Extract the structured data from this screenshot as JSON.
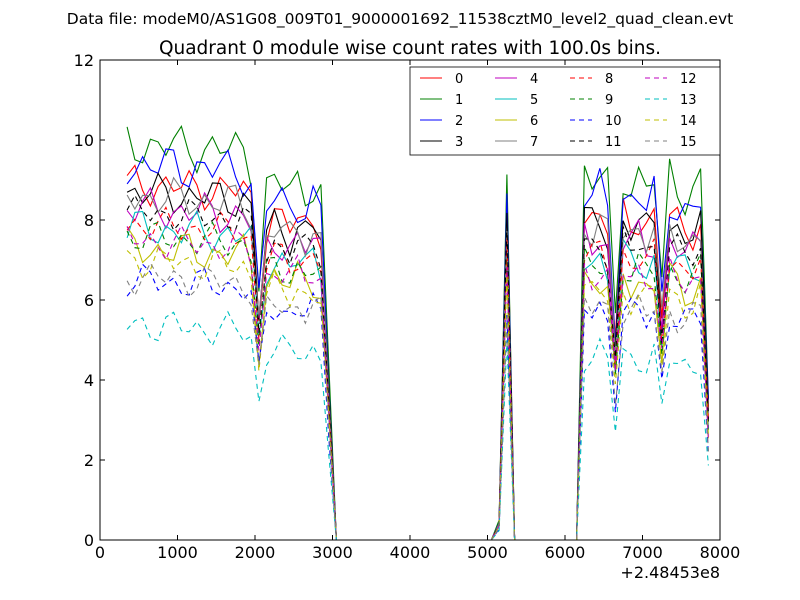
{
  "suptitle": "Data file: modeM0/AS1G08_009T01_9000001692_11538cztM0_level2_quad_clean.evt",
  "chart_data": {
    "type": "line",
    "title": "Quadrant 0 module wise count rates with 100.0s bins.",
    "xlabel": "",
    "ylabel": "",
    "x_offset_label": "+2.48453e8",
    "xlim": [
      0,
      8000
    ],
    "ylim": [
      0,
      12
    ],
    "xticks": [
      0,
      1000,
      2000,
      3000,
      4000,
      5000,
      6000,
      7000,
      8000
    ],
    "yticks": [
      0,
      2,
      4,
      6,
      8,
      10,
      12
    ],
    "grid": false,
    "legend_position": "top-right",
    "legend_columns": 4,
    "x": [
      350,
      450,
      550,
      650,
      750,
      850,
      950,
      1050,
      1150,
      1250,
      1350,
      1450,
      1550,
      1650,
      1750,
      1850,
      1950,
      2050,
      2150,
      2250,
      2350,
      2450,
      2550,
      2650,
      2750,
      2850,
      2950,
      3050,
      3150,
      3250,
      3350,
      3450,
      3550,
      3650,
      3750,
      3850,
      3950,
      4050,
      4150,
      4250,
      4350,
      4450,
      4550,
      4650,
      4750,
      4850,
      4950,
      5050,
      5150,
      5250,
      5350,
      5450,
      5550,
      5650,
      5750,
      5850,
      5950,
      6050,
      6150,
      6250,
      6350,
      6450,
      6550,
      6650,
      6750,
      6850,
      6950,
      7050,
      7150,
      7250,
      7350,
      7450,
      7550,
      7650,
      7750,
      7850
    ],
    "series_templates": [
      {
        "name": "dip_profile",
        "values": [
          1.0,
          1.0,
          1.0,
          1.0,
          1.0,
          1.0,
          1.0,
          1.0,
          1.0,
          1.0,
          1.0,
          1.0,
          1.0,
          1.0,
          1.0,
          1.0,
          0.97,
          0.66,
          0.9,
          0.93,
          0.92,
          0.9,
          0.93,
          0.91,
          0.93,
          0.9,
          0.45,
          0,
          0,
          0,
          0,
          0,
          0,
          0,
          0,
          0,
          0,
          0,
          0,
          0,
          0,
          0,
          0,
          0,
          0,
          0,
          0,
          0,
          0.05,
          1.0,
          0,
          0,
          0,
          0,
          0,
          0,
          0,
          0,
          0,
          1.0,
          0.98,
          1.0,
          0.96,
          0.6,
          1.0,
          0.98,
          1.0,
          0.97,
          1.0,
          0.7,
          1.0,
          0.98,
          0.96,
          0.97,
          1.0,
          0.4
        ]
      }
    ],
    "series": [
      {
        "name": "0",
        "color": "#ff0000",
        "dash": "solid",
        "level": 8.9,
        "wiggle": 0.35
      },
      {
        "name": "1",
        "color": "#008000",
        "dash": "solid",
        "level": 9.9,
        "wiggle": 0.4
      },
      {
        "name": "2",
        "color": "#0000ff",
        "dash": "solid",
        "level": 9.4,
        "wiggle": 0.4
      },
      {
        "name": "3",
        "color": "#000000",
        "dash": "solid",
        "level": 8.7,
        "wiggle": 0.35
      },
      {
        "name": "4",
        "color": "#bf00bf",
        "dash": "solid",
        "level": 8.3,
        "wiggle": 0.35
      },
      {
        "name": "5",
        "color": "#00bfbf",
        "dash": "solid",
        "level": 7.8,
        "wiggle": 0.35
      },
      {
        "name": "6",
        "color": "#bfbf00",
        "dash": "solid",
        "level": 7.3,
        "wiggle": 0.35
      },
      {
        "name": "7",
        "color": "#808080",
        "dash": "solid",
        "level": 8.6,
        "wiggle": 0.35
      },
      {
        "name": "8",
        "color": "#ff0000",
        "dash": "dashed",
        "level": 7.9,
        "wiggle": 0.3
      },
      {
        "name": "9",
        "color": "#008000",
        "dash": "dashed",
        "level": 7.6,
        "wiggle": 0.3
      },
      {
        "name": "10",
        "color": "#0000ff",
        "dash": "dashed",
        "level": 6.5,
        "wiggle": 0.3
      },
      {
        "name": "11",
        "color": "#000000",
        "dash": "dashed",
        "level": 8.2,
        "wiggle": 0.3
      },
      {
        "name": "12",
        "color": "#bf00bf",
        "dash": "dashed",
        "level": 7.5,
        "wiggle": 0.3
      },
      {
        "name": "13",
        "color": "#00bfbf",
        "dash": "dashed",
        "level": 5.4,
        "wiggle": 0.3
      },
      {
        "name": "14",
        "color": "#bfbf00",
        "dash": "dashed",
        "level": 7.0,
        "wiggle": 0.3
      },
      {
        "name": "15",
        "color": "#808080",
        "dash": "dashed",
        "level": 6.6,
        "wiggle": 0.3
      }
    ]
  }
}
